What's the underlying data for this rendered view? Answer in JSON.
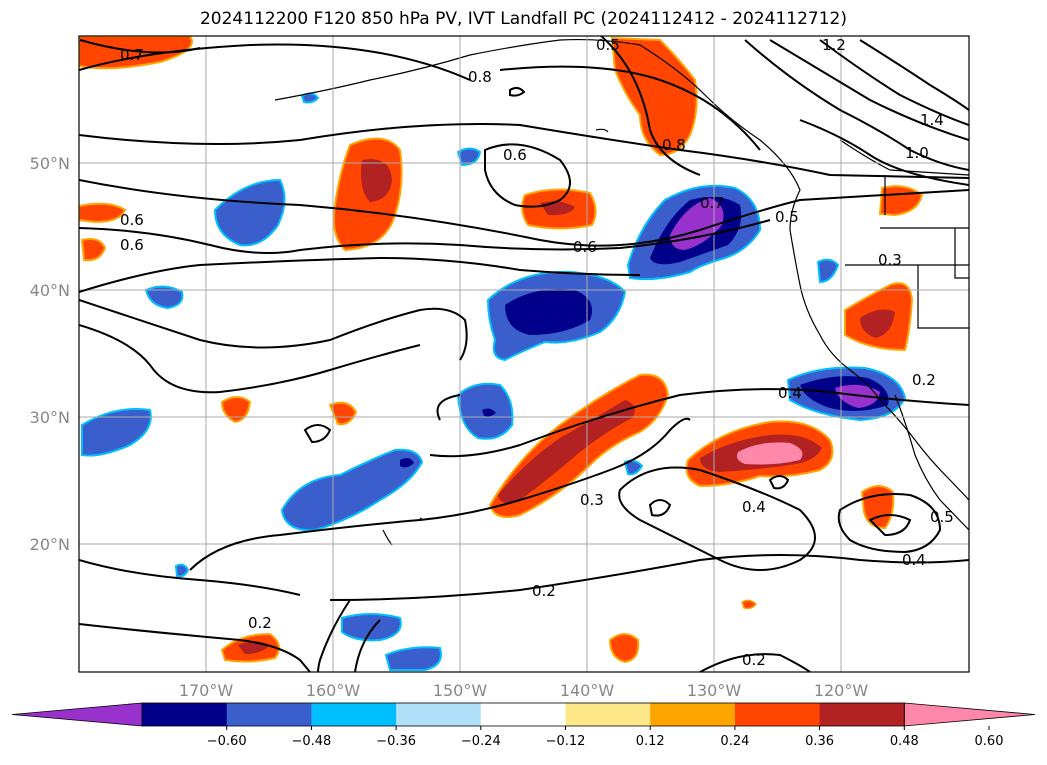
{
  "title": "2024112200 F120 850 hPa PV, IVT Landfall PC (2024112412 - 2024112712)",
  "lat_labels": [
    "50°N",
    "40°N",
    "30°N",
    "20°N"
  ],
  "lon_labels": [
    "170°W",
    "160°W",
    "150°W",
    "140°W",
    "130°W",
    "120°W"
  ],
  "contour_labels": [
    "0.7",
    "0.8",
    "0.6",
    "0.6",
    "0.7",
    "0.6",
    "0.5",
    "0.6",
    "0.5",
    "0.8",
    "1.2",
    "1.4",
    "1.0",
    "0.3",
    "0.2",
    "0.4",
    "0.3",
    "0.4",
    "0.5",
    "0.4",
    "0.2",
    "0.2",
    "0.2"
  ],
  "colorbar": {
    "ticks": [
      "−0.60",
      "−0.48",
      "−0.36",
      "−0.24",
      "−0.12",
      "0.12",
      "0.24",
      "0.36",
      "0.48",
      "0.60"
    ],
    "colors": [
      "#9932cc",
      "#00008b",
      "#3a5fcd",
      "#00bfff",
      "#b0e0fa",
      "#ffffff",
      "#ffe88a",
      "#ffa500",
      "#ff4500",
      "#b22222",
      "#ff88aa"
    ]
  }
}
